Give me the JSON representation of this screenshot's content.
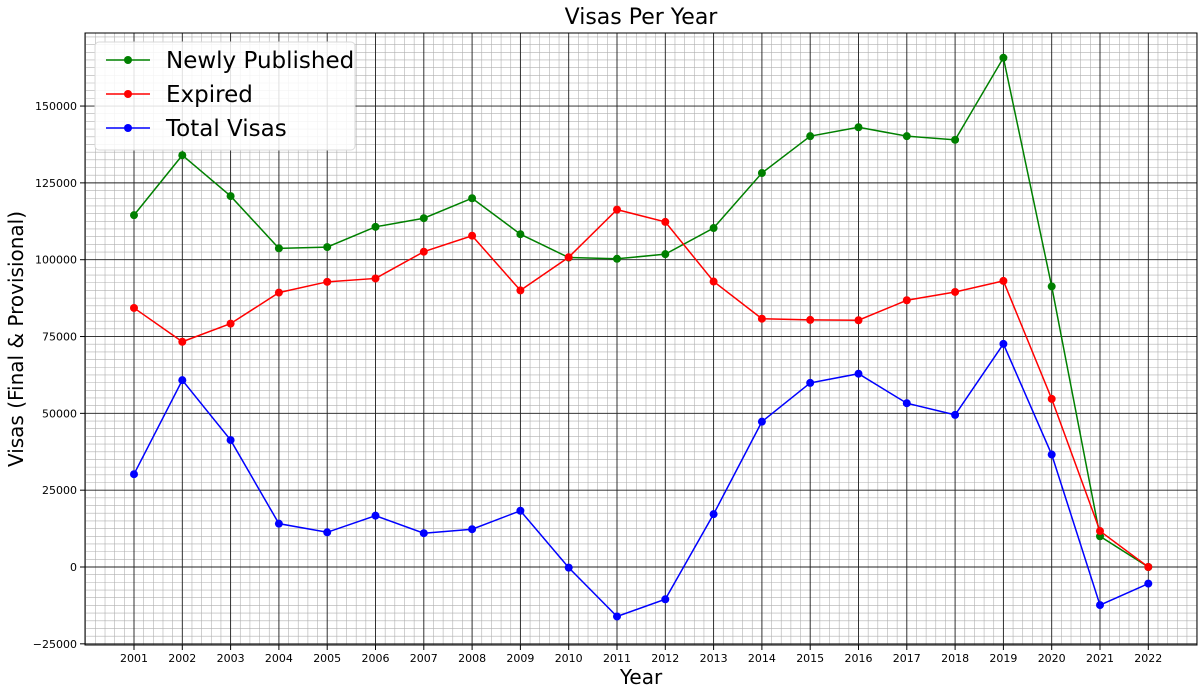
{
  "chart_data": {
    "type": "line",
    "title": "Visas Per Year",
    "xlabel": "Year",
    "ylabel": "Visas (Final & Provisional)",
    "categories": [
      "2001",
      "2002",
      "2003",
      "2004",
      "2005",
      "2006",
      "2007",
      "2008",
      "2009",
      "2010",
      "2011",
      "2012",
      "2013",
      "2014",
      "2015",
      "2016",
      "2017",
      "2018",
      "2019",
      "2020",
      "2021",
      "2022"
    ],
    "ylim": [
      -25000,
      175000
    ],
    "yticks": [
      -25000,
      0,
      25000,
      50000,
      75000,
      100000,
      125000,
      150000
    ],
    "grid": true,
    "minor_grid": true,
    "legend_position": "upper-left",
    "series": [
      {
        "name": "Newly Published",
        "color": "#008000",
        "values": [
          114500,
          134000,
          120700,
          103700,
          104100,
          110700,
          113500,
          120000,
          108300,
          100700,
          100300,
          101800,
          110300,
          128200,
          140200,
          143100,
          140200,
          139000,
          165700,
          91300,
          10000,
          0
        ]
      },
      {
        "name": "Expired",
        "color": "#ff0000",
        "values": [
          84300,
          73300,
          79200,
          89300,
          92800,
          93900,
          102600,
          107800,
          90000,
          100800,
          116300,
          112300,
          92900,
          80800,
          80400,
          80300,
          86800,
          89500,
          93100,
          54700,
          11700,
          0
        ]
      },
      {
        "name": "Total Visas",
        "color": "#0000ff",
        "values": [
          30200,
          60800,
          41300,
          14100,
          11300,
          16700,
          11000,
          12300,
          18300,
          -200,
          -16100,
          -10500,
          17200,
          47300,
          59900,
          62900,
          53300,
          49500,
          72600,
          36600,
          -12400,
          -5400
        ]
      }
    ]
  }
}
